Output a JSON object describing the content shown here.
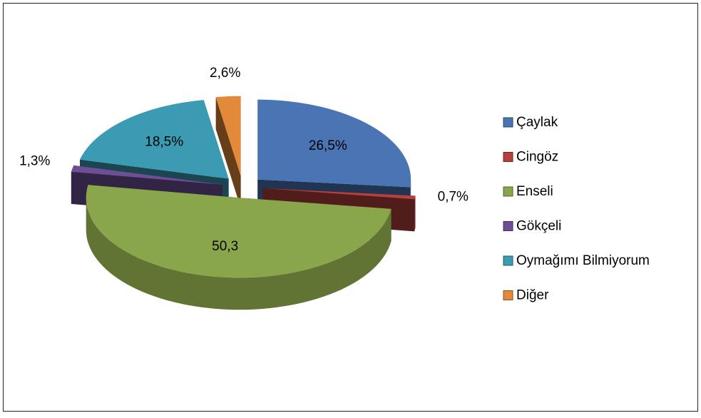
{
  "chart_data": {
    "type": "pie3d",
    "categories": [
      "Çaylak",
      "Cingöz",
      "Enseli",
      "Gökçeli",
      "Oymağımı Bilmiyorum",
      "Diğer"
    ],
    "values": [
      26.5,
      0.7,
      50.3,
      1.3,
      18.5,
      2.6
    ],
    "value_labels": [
      "26,5%",
      "0,7%",
      "50,3",
      "1,3%",
      "18,5%",
      "2,6%"
    ],
    "colors": [
      "#4a74b4",
      "#b5403c",
      "#8aa64a",
      "#6e4f96",
      "#3b9bb3",
      "#e2893a"
    ],
    "legend": "right"
  }
}
